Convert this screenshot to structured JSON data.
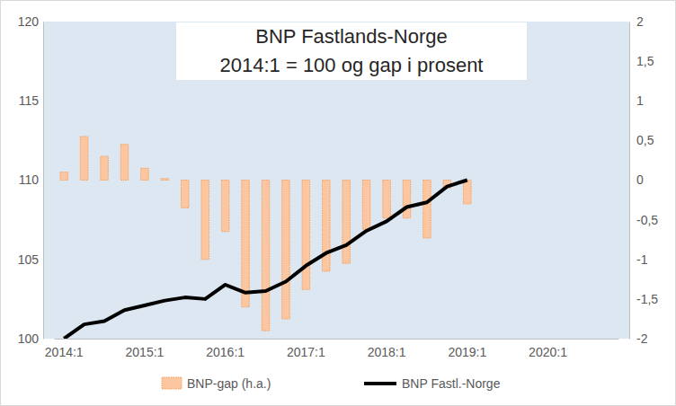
{
  "chart_data": {
    "type": "bar",
    "title": "BNP Fastlands-Norge",
    "subtitle": "2014:1 = 100 og gap i prosent",
    "categories": [
      "2014:1",
      null,
      null,
      null,
      "2015:1",
      null,
      null,
      null,
      "2016:1",
      null,
      null,
      null,
      "2017:1",
      null,
      null,
      null,
      "2018:1",
      null,
      null,
      null,
      "2019:1",
      null,
      null,
      null,
      "2020:1",
      null,
      null,
      null
    ],
    "series": [
      {
        "name": "BNP-gap (h.a.)",
        "type": "bar",
        "axis": "y2",
        "color": "#fbc6a0",
        "values": [
          0.1,
          0.55,
          0.3,
          0.45,
          0.15,
          0.02,
          -0.35,
          -1.0,
          -0.65,
          -1.6,
          -1.9,
          -1.75,
          -1.38,
          -1.15,
          -1.05,
          -0.62,
          -0.48,
          -0.48,
          -0.73,
          -0.1,
          -0.3,
          null,
          null,
          null,
          null,
          null,
          null,
          null
        ]
      },
      {
        "name": "BNP Fastl.-Norge",
        "type": "line",
        "color": "#000000",
        "values": [
          100,
          100.9,
          101.1,
          101.8,
          102.1,
          102.4,
          102.6,
          102.5,
          103.4,
          102.9,
          103.0,
          103.6,
          104.6,
          105.4,
          105.9,
          106.8,
          107.4,
          108.3,
          108.6,
          109.6,
          110.0,
          null,
          null,
          null,
          null,
          null,
          null,
          null
        ]
      }
    ],
    "ylim": [
      100,
      120
    ],
    "yticks": [
      100,
      105,
      110,
      115,
      120
    ],
    "y2lim": [
      -2,
      2
    ],
    "y2ticks": [
      -2,
      {
        "value": -1.5,
        "label": "-1,5"
      },
      -1,
      {
        "value": -0.5,
        "label": "-0,5"
      },
      0,
      {
        "value": 0.5,
        "label": "0,5"
      },
      1,
      {
        "value": 1.5,
        "label": "1,5"
      },
      2
    ],
    "grid": false,
    "legend": "bottom"
  }
}
